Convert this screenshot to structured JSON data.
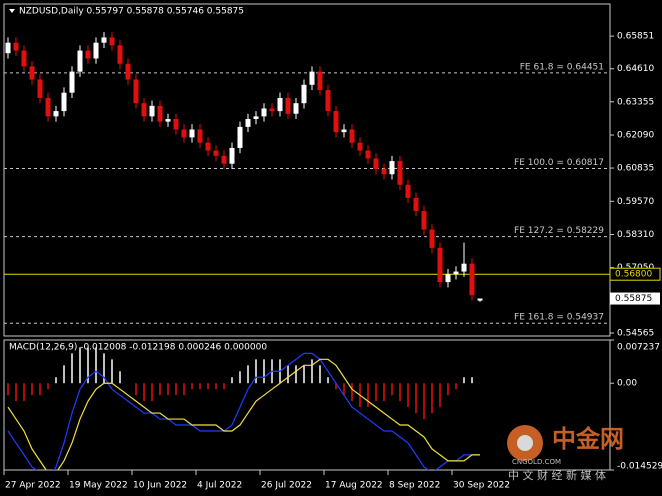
{
  "chart_data": [
    {
      "type": "candlestick",
      "title": "NZDUSD,Daily  0.55797 0.55878 0.55746 0.55875",
      "open": [
        0.652,
        0.656,
        0.653,
        0.647,
        0.642,
        0.635,
        0.628,
        0.63,
        0.637,
        0.645,
        0.653,
        0.65,
        0.656,
        0.658,
        0.655,
        0.648,
        0.642,
        0.633,
        0.628,
        0.632,
        0.626,
        0.627,
        0.623,
        0.62,
        0.623,
        0.618,
        0.615,
        0.613,
        0.61,
        0.616,
        0.624,
        0.627,
        0.628,
        0.631,
        0.63,
        0.635,
        0.629,
        0.633,
        0.64,
        0.645,
        0.638,
        0.63,
        0.622,
        0.623,
        0.618,
        0.615,
        0.612,
        0.608,
        0.606,
        0.611,
        0.602,
        0.597,
        0.592,
        0.585,
        0.578,
        0.565,
        0.568,
        0.569,
        0.572,
        0.55797
      ],
      "high": [
        0.658,
        0.658,
        0.655,
        0.649,
        0.644,
        0.637,
        0.632,
        0.639,
        0.647,
        0.655,
        0.655,
        0.658,
        0.66,
        0.66,
        0.657,
        0.65,
        0.644,
        0.635,
        0.634,
        0.634,
        0.629,
        0.629,
        0.625,
        0.625,
        0.625,
        0.62,
        0.617,
        0.615,
        0.618,
        0.626,
        0.629,
        0.63,
        0.633,
        0.633,
        0.637,
        0.637,
        0.635,
        0.642,
        0.647,
        0.647,
        0.64,
        0.632,
        0.625,
        0.625,
        0.62,
        0.617,
        0.614,
        0.61,
        0.613,
        0.613,
        0.604,
        0.599,
        0.594,
        0.587,
        0.58,
        0.57,
        0.571,
        0.58,
        0.574,
        0.55878
      ],
      "low": [
        0.65,
        0.651,
        0.645,
        0.64,
        0.633,
        0.626,
        0.626,
        0.628,
        0.635,
        0.643,
        0.648,
        0.648,
        0.654,
        0.653,
        0.646,
        0.64,
        0.631,
        0.626,
        0.626,
        0.624,
        0.624,
        0.621,
        0.618,
        0.618,
        0.616,
        0.613,
        0.611,
        0.608,
        0.608,
        0.614,
        0.622,
        0.625,
        0.626,
        0.628,
        0.628,
        0.627,
        0.627,
        0.631,
        0.638,
        0.636,
        0.628,
        0.62,
        0.62,
        0.616,
        0.613,
        0.61,
        0.606,
        0.604,
        0.604,
        0.6,
        0.595,
        0.59,
        0.583,
        0.576,
        0.563,
        0.563,
        0.566,
        0.567,
        0.558,
        0.55746
      ],
      "close": [
        0.656,
        0.653,
        0.647,
        0.642,
        0.635,
        0.628,
        0.63,
        0.637,
        0.645,
        0.653,
        0.65,
        0.656,
        0.658,
        0.655,
        0.648,
        0.642,
        0.633,
        0.628,
        0.632,
        0.626,
        0.627,
        0.623,
        0.62,
        0.623,
        0.618,
        0.615,
        0.613,
        0.61,
        0.616,
        0.624,
        0.627,
        0.628,
        0.631,
        0.63,
        0.635,
        0.629,
        0.633,
        0.64,
        0.645,
        0.638,
        0.63,
        0.622,
        0.623,
        0.618,
        0.615,
        0.612,
        0.608,
        0.606,
        0.611,
        0.602,
        0.597,
        0.592,
        0.585,
        0.578,
        0.565,
        0.568,
        0.569,
        0.572,
        0.56,
        0.55875
      ],
      "up_color": "#ffffff",
      "down_color": "#e01010",
      "ylim": [
        0.54451,
        0.67071
      ],
      "yticks": [
        {
          "value": 0.65851,
          "label": "0.65851"
        },
        {
          "value": 0.6461,
          "label": "0.64610"
        },
        {
          "value": 0.63355,
          "label": "0.63355"
        },
        {
          "value": 0.6209,
          "label": "0.62090"
        },
        {
          "value": 0.60835,
          "label": "0.60835"
        },
        {
          "value": 0.5957,
          "label": "0.59570"
        },
        {
          "value": 0.5831,
          "label": "0.58310"
        },
        {
          "value": 0.5705,
          "label": "0.57050"
        },
        {
          "value": 0.54565,
          "label": "0.54565"
        }
      ],
      "xticks": [
        {
          "value": 0,
          "label": "27 Apr 2022"
        },
        {
          "value": 8,
          "label": "19 May 2022"
        },
        {
          "value": 16,
          "label": "10 Jun 2022"
        },
        {
          "value": 24,
          "label": "4 Jul 2022"
        },
        {
          "value": 32,
          "label": "26 Jul 2022"
        },
        {
          "value": 40,
          "label": "17 Aug 2022"
        },
        {
          "value": 48,
          "label": "8 Sep 2022"
        },
        {
          "value": 56,
          "label": "30 Sep 2022"
        }
      ],
      "levels": [
        {
          "text": "FE 61.8 = 0.64451",
          "value": 0.64451,
          "color": "#c8c8c8",
          "style": "dashed"
        },
        {
          "text": "FE 100.0 = 0.60817",
          "value": 0.60817,
          "color": "#c8c8c8",
          "style": "dashed"
        },
        {
          "text": "FE 127.2 = 0.58229",
          "value": 0.58229,
          "color": "#c8c8c8",
          "style": "dashed"
        },
        {
          "text": "FE 161.8 = 0.54937",
          "value": 0.54937,
          "color": "#c8c8c8",
          "style": "dashed"
        },
        {
          "value": 0.568,
          "label": "0.56800",
          "color": "#e8d800",
          "style": "solid"
        }
      ],
      "current_price": {
        "value": 0.55875,
        "label": "0.55875"
      }
    },
    {
      "type": "macd",
      "title": "MACD(12,26,9) -0.012008 -0.012198 0.000246 0.000000",
      "histogram": [
        -0.002,
        -0.003,
        -0.003,
        -0.002,
        -0.002,
        -0.001,
        0.001,
        0.003,
        0.005,
        0.006,
        0.006,
        0.006,
        0.005,
        0.004,
        0.002,
        0.0,
        -0.002,
        -0.003,
        -0.003,
        -0.002,
        -0.002,
        -0.002,
        -0.002,
        -0.001,
        -0.001,
        -0.001,
        -0.001,
        -0.001,
        0.001,
        0.002,
        0.003,
        0.004,
        0.004,
        0.004,
        0.004,
        0.003,
        0.003,
        0.003,
        0.004,
        0.003,
        0.001,
        -0.001,
        -0.002,
        -0.003,
        -0.004,
        -0.004,
        -0.003,
        -0.003,
        -0.002,
        -0.003,
        -0.004,
        -0.005,
        -0.006,
        -0.005,
        -0.004,
        -0.002,
        -0.001,
        0.001,
        0.001,
        0.0
      ],
      "pos_color": "#ffffff",
      "neg_color": "#e01010",
      "series": [
        {
          "color": "#1e3cff",
          "values": [
            -0.008,
            -0.01,
            -0.012,
            -0.014,
            -0.015,
            -0.016,
            -0.014,
            -0.01,
            -0.005,
            -0.001,
            0.001,
            0.002,
            0.001,
            -0.001,
            -0.002,
            -0.003,
            -0.004,
            -0.005,
            -0.005,
            -0.006,
            -0.006,
            -0.007,
            -0.007,
            -0.007,
            -0.008,
            -0.008,
            -0.008,
            -0.008,
            -0.007,
            -0.004,
            -0.001,
            0.001,
            0.001,
            0.002,
            0.002,
            0.003,
            0.004,
            0.005,
            0.005,
            0.004,
            0.002,
            0.0,
            -0.002,
            -0.004,
            -0.005,
            -0.006,
            -0.007,
            -0.008,
            -0.008,
            -0.009,
            -0.01,
            -0.012,
            -0.014,
            -0.015,
            -0.014,
            -0.013,
            -0.013,
            -0.012,
            -0.012,
            -0.012
          ]
        },
        {
          "color": "#f0e040",
          "values": [
            -0.004,
            -0.006,
            -0.008,
            -0.011,
            -0.013,
            -0.015,
            -0.015,
            -0.013,
            -0.01,
            -0.006,
            -0.003,
            -0.001,
            0.0,
            0.0,
            -0.001,
            -0.002,
            -0.003,
            -0.004,
            -0.005,
            -0.005,
            -0.006,
            -0.006,
            -0.006,
            -0.007,
            -0.007,
            -0.007,
            -0.007,
            -0.008,
            -0.008,
            -0.007,
            -0.005,
            -0.003,
            -0.002,
            -0.001,
            0.0,
            0.001,
            0.002,
            0.003,
            0.003,
            0.004,
            0.004,
            0.003,
            0.001,
            -0.001,
            -0.002,
            -0.003,
            -0.004,
            -0.005,
            -0.006,
            -0.007,
            -0.007,
            -0.008,
            -0.009,
            -0.011,
            -0.012,
            -0.013,
            -0.013,
            -0.013,
            -0.012,
            -0.012
          ]
        }
      ],
      "ylim": [
        -0.014529,
        0.007237
      ],
      "yticks": [
        {
          "value": 0.007237,
          "label": "0.007237"
        },
        {
          "value": 0,
          "label": "0.00"
        },
        {
          "value": -0.014529,
          "label": "-0.014529"
        }
      ]
    }
  ],
  "watermark": {
    "name": "中金网",
    "site": "CNGOLD.COM",
    "slogan": "中 文 财 经 新 媒 体"
  }
}
